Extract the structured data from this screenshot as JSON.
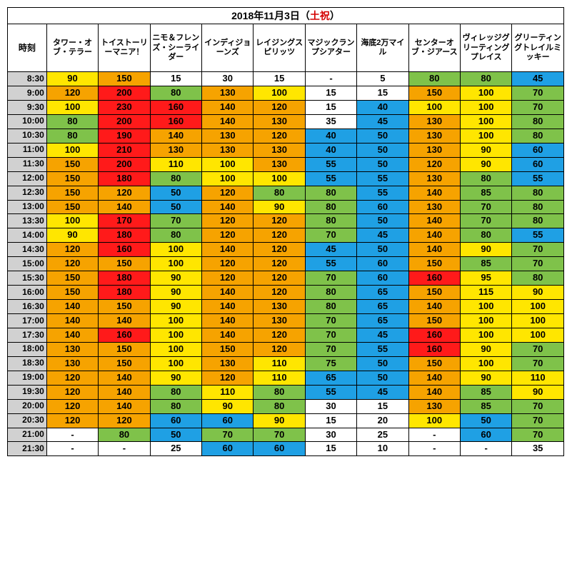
{
  "title_prefix": "2018年11月3日（",
  "title_holiday": "土祝",
  "title_suffix": "）",
  "time_header": "時刻",
  "attractions": [
    "タワー・オブ・テラー",
    "トイストーリーマニア！",
    "ニモ＆フレンズ・シーライダー",
    "インディジョーンズ",
    "レイジングスピリッツ",
    "マジックランプシアター",
    "海底2万マイル",
    "センターオブ・ジアース",
    "ヴィレッジグリーティングプレイス",
    "グリーティングトレイルミッキー"
  ],
  "times": [
    "8:30",
    "9:00",
    "9:30",
    "10:00",
    "10:30",
    "11:00",
    "11:30",
    "12:00",
    "12:30",
    "13:00",
    "13:30",
    "14:00",
    "14:30",
    "15:00",
    "15:30",
    "16:00",
    "16:30",
    "17:00",
    "17:30",
    "18:00",
    "18:30",
    "19:00",
    "19:30",
    "20:00",
    "20:30",
    "21:00",
    "21:30"
  ],
  "rows": [
    [
      "90",
      "150",
      "15",
      "30",
      "15",
      "-",
      "5",
      "80",
      "80",
      "45"
    ],
    [
      "120",
      "200",
      "80",
      "130",
      "100",
      "15",
      "15",
      "150",
      "100",
      "70"
    ],
    [
      "100",
      "230",
      "160",
      "140",
      "120",
      "15",
      "40",
      "100",
      "100",
      "70"
    ],
    [
      "80",
      "200",
      "160",
      "140",
      "130",
      "35",
      "45",
      "130",
      "100",
      "80"
    ],
    [
      "80",
      "190",
      "140",
      "130",
      "120",
      "40",
      "50",
      "130",
      "100",
      "80"
    ],
    [
      "100",
      "210",
      "130",
      "130",
      "130",
      "40",
      "50",
      "130",
      "90",
      "60"
    ],
    [
      "150",
      "200",
      "110",
      "100",
      "130",
      "55",
      "50",
      "120",
      "90",
      "60"
    ],
    [
      "150",
      "180",
      "80",
      "100",
      "100",
      "55",
      "55",
      "130",
      "80",
      "55"
    ],
    [
      "150",
      "120",
      "50",
      "120",
      "80",
      "80",
      "55",
      "140",
      "85",
      "80"
    ],
    [
      "150",
      "140",
      "50",
      "140",
      "90",
      "80",
      "60",
      "130",
      "70",
      "80"
    ],
    [
      "100",
      "170",
      "70",
      "120",
      "120",
      "80",
      "50",
      "140",
      "70",
      "80"
    ],
    [
      "90",
      "180",
      "80",
      "120",
      "120",
      "70",
      "45",
      "140",
      "80",
      "55"
    ],
    [
      "120",
      "160",
      "100",
      "140",
      "120",
      "45",
      "50",
      "140",
      "90",
      "70"
    ],
    [
      "120",
      "150",
      "100",
      "120",
      "120",
      "55",
      "60",
      "150",
      "85",
      "70"
    ],
    [
      "150",
      "180",
      "90",
      "120",
      "120",
      "70",
      "60",
      "160",
      "95",
      "80"
    ],
    [
      "150",
      "180",
      "90",
      "140",
      "120",
      "80",
      "65",
      "150",
      "115",
      "90"
    ],
    [
      "140",
      "150",
      "90",
      "140",
      "130",
      "80",
      "65",
      "140",
      "100",
      "100"
    ],
    [
      "140",
      "140",
      "100",
      "140",
      "130",
      "70",
      "65",
      "150",
      "100",
      "100"
    ],
    [
      "140",
      "160",
      "100",
      "140",
      "120",
      "70",
      "45",
      "160",
      "100",
      "100"
    ],
    [
      "130",
      "150",
      "100",
      "150",
      "120",
      "70",
      "55",
      "160",
      "90",
      "70"
    ],
    [
      "130",
      "150",
      "100",
      "130",
      "110",
      "75",
      "50",
      "150",
      "100",
      "70"
    ],
    [
      "120",
      "140",
      "90",
      "120",
      "110",
      "65",
      "50",
      "140",
      "90",
      "110"
    ],
    [
      "120",
      "140",
      "80",
      "110",
      "80",
      "55",
      "45",
      "140",
      "85",
      "90"
    ],
    [
      "120",
      "140",
      "80",
      "90",
      "80",
      "30",
      "15",
      "130",
      "85",
      "70"
    ],
    [
      "120",
      "120",
      "60",
      "60",
      "90",
      "15",
      "20",
      "100",
      "50",
      "70"
    ],
    [
      "-",
      "80",
      "50",
      "70",
      "70",
      "30",
      "25",
      "-",
      "60",
      "70"
    ],
    [
      "-",
      "-",
      "25",
      "60",
      "60",
      "15",
      "10",
      "-",
      "-",
      "35"
    ]
  ],
  "thresholds": {
    "red": 160,
    "orange": 120,
    "yellow": 90,
    "green": 70,
    "blue": 40
  },
  "colors": {
    "red": "#ff1a1a",
    "orange": "#f6a300",
    "yellow": "#ffe600",
    "green": "#7fc24a",
    "blue": "#1fa0e4",
    "white": "#ffffff",
    "timecol": "#d1d1d1"
  }
}
